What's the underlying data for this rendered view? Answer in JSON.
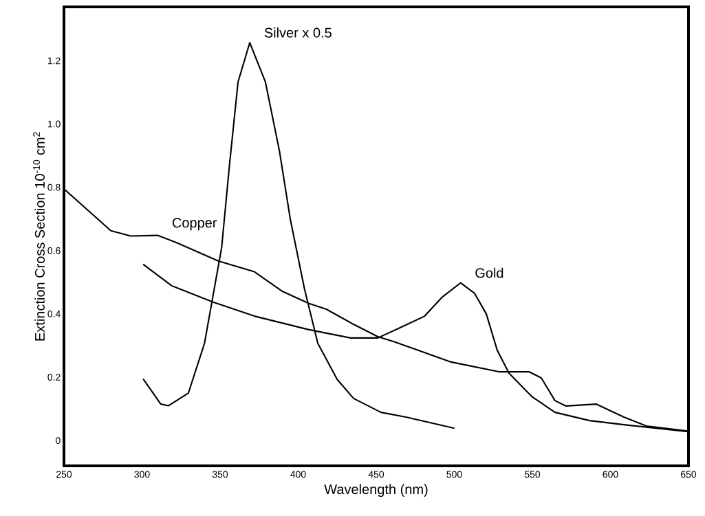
{
  "chart_data": {
    "type": "line",
    "xlabel": "Wavelength (nm)",
    "ylabel": "Extinction Cross Section 10$^{-10}$ cm$^{2}$",
    "xlim": [
      250,
      650
    ],
    "ylim": [
      -0.08,
      1.37
    ],
    "xticks": [
      250,
      300,
      350,
      400,
      450,
      500,
      550,
      600,
      650
    ],
    "yticks": [
      0,
      0.2,
      0.4,
      0.6,
      0.8,
      {
        "value": 1,
        "label": "1.0"
      },
      1.2
    ],
    "grid": false,
    "marker": "none",
    "line_style": "solid",
    "series": [
      {
        "name": "Copper",
        "color": "#000000",
        "x": [
          250.4,
          280,
          292.7,
          310,
          322.7,
          349,
          372,
          389.6,
          407,
          418,
          435.5,
          451,
          461,
          498,
          529,
          548,
          555.7,
          564.5,
          571.6,
          591,
          608.6,
          623,
          649.6
        ],
        "values": [
          0.793,
          0.663,
          0.646,
          0.648,
          0.624,
          0.567,
          0.533,
          0.472,
          0.433,
          0.415,
          0.367,
          0.328,
          0.313,
          0.248,
          0.217,
          0.217,
          0.198,
          0.126,
          0.109,
          0.115,
          0.074,
          0.046,
          0.03
        ]
      },
      {
        "name": "Gold",
        "color": "#000000",
        "x": [
          300.7,
          319,
          345.6,
          372,
          407,
          433.7,
          451,
          469,
          481,
          492,
          504,
          513,
          520.5,
          527.5,
          535,
          549.6,
          564.5,
          586.6,
          608.6,
          649.6
        ],
        "values": [
          0.557,
          0.489,
          0.437,
          0.393,
          0.35,
          0.324,
          0.324,
          0.365,
          0.393,
          0.452,
          0.498,
          0.465,
          0.4,
          0.285,
          0.213,
          0.139,
          0.089,
          0.063,
          0.05,
          0.028
        ]
      },
      {
        "name": "Silver x 0.5",
        "color": "#000000",
        "x": [
          300.7,
          312,
          317,
          329.7,
          340,
          351,
          356,
          361.5,
          369,
          379,
          388,
          395,
          404,
          412.6,
          425,
          435.5,
          453,
          469,
          500
        ],
        "values": [
          0.195,
          0.115,
          0.11,
          0.15,
          0.307,
          0.61,
          0.87,
          1.133,
          1.257,
          1.133,
          0.915,
          0.698,
          0.48,
          0.307,
          0.193,
          0.133,
          0.089,
          0.074,
          0.039
        ]
      }
    ],
    "legend": false
  }
}
